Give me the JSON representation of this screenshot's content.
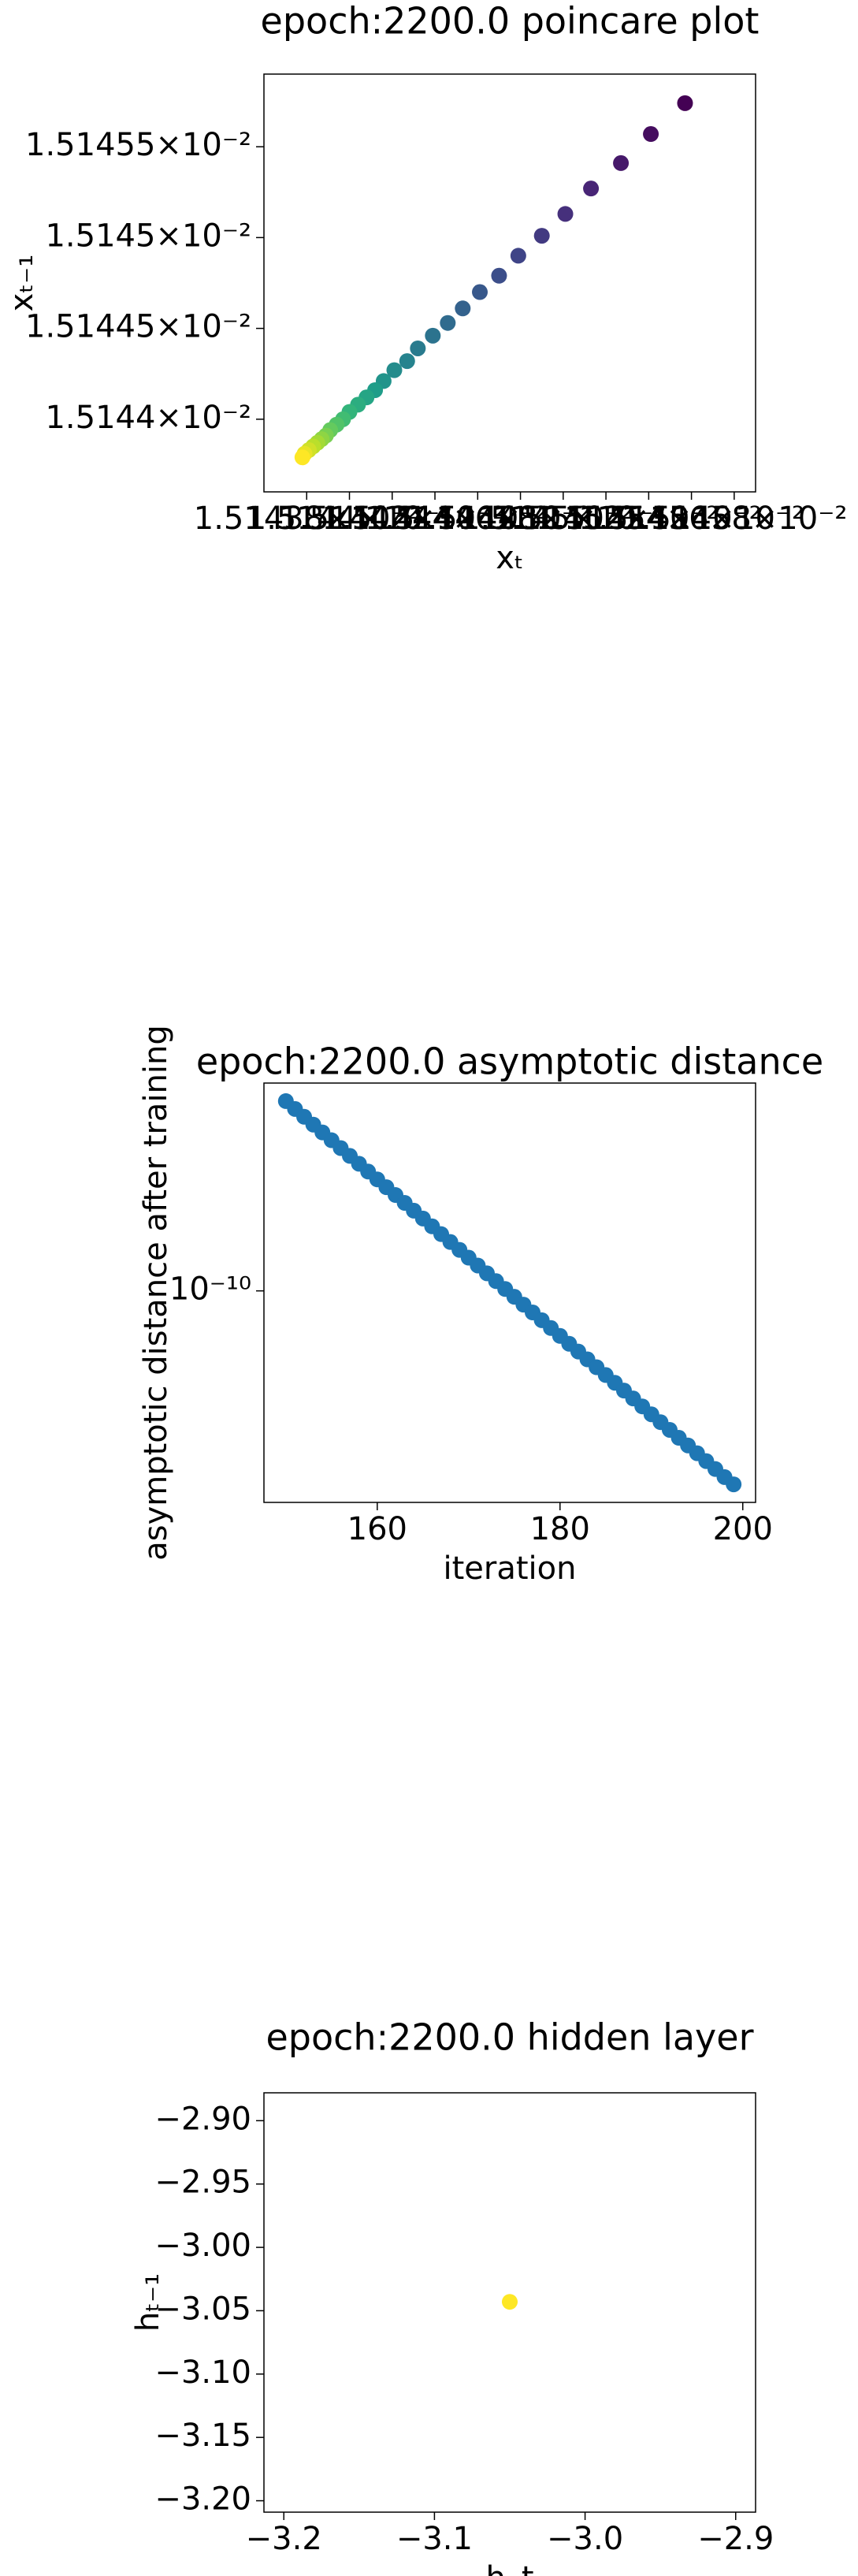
{
  "chart_data": [
    {
      "type": "scatter",
      "title": "epoch:2200.0 poincare plot",
      "xlabel": "xₜ",
      "ylabel": "xₜ₋₁",
      "colormap": "viridis",
      "x": [
        0.01514557,
        0.01514541,
        0.01514527,
        0.01514513,
        0.01514501,
        0.0151449,
        0.01514479,
        0.0151447,
        0.01514461,
        0.01514453,
        0.01514446,
        0.01514439,
        0.01514432,
        0.01514427,
        0.01514421,
        0.01514416,
        0.01514412,
        0.01514408,
        0.01514404,
        0.015144,
        0.01514397,
        0.01514394,
        0.01514391,
        0.01514389,
        0.01514387,
        0.01514385,
        0.01514383,
        0.01514381,
        0.01514379,
        0.01514378
      ],
      "y": [
        0.01514574,
        0.01514557,
        0.01514541,
        0.01514527,
        0.01514513,
        0.01514501,
        0.0151449,
        0.01514479,
        0.0151447,
        0.01514461,
        0.01514453,
        0.01514446,
        0.01514439,
        0.01514432,
        0.01514427,
        0.01514421,
        0.01514416,
        0.01514412,
        0.01514408,
        0.01514404,
        0.015144,
        0.01514397,
        0.01514394,
        0.01514391,
        0.01514389,
        0.01514387,
        0.01514385,
        0.01514383,
        0.01514381,
        0.01514379
      ],
      "xlim": [
        0.0151436,
        0.0151459
      ],
      "ylim": [
        0.0151436,
        0.0151459
      ],
      "xticks": [
        {
          "value": 0.0151438,
          "label": "1.51438×10⁻²"
        },
        {
          "value": 0.015144,
          "label": "1.5144×10⁻²"
        },
        {
          "value": 0.0151442,
          "label": "1.51442×10⁻²"
        },
        {
          "value": 0.0151444,
          "label": "1.51444×10⁻²"
        },
        {
          "value": 0.0151446,
          "label": "1.51446×10⁻²"
        },
        {
          "value": 0.0151448,
          "label": "1.51448×10⁻²"
        },
        {
          "value": 0.015145,
          "label": "1.5145×10⁻²"
        },
        {
          "value": 0.0151452,
          "label": "1.51452×10⁻²"
        },
        {
          "value": 0.0151454,
          "label": "1.51454×10⁻²"
        },
        {
          "value": 0.0151456,
          "label": "1.51456×10⁻²"
        },
        {
          "value": 0.0151458,
          "label": "1.51458×10⁻²"
        }
      ],
      "yticks": [
        {
          "value": 0.015144,
          "label": "1.5144×10⁻²"
        },
        {
          "value": 0.0151445,
          "label": "1.51445×10⁻²"
        },
        {
          "value": 0.015145,
          "label": "1.5145×10⁻²"
        },
        {
          "value": 0.0151455,
          "label": "1.51455×10⁻²"
        }
      ]
    },
    {
      "type": "scatter",
      "title": "epoch:2200.0 asymptotic distance",
      "xlabel": "iteration",
      "ylabel": "asymptotic distance after training",
      "color": "#1f77b4",
      "yscale": "log",
      "x": [
        150,
        151,
        152,
        153,
        154,
        155,
        156,
        157,
        158,
        159,
        160,
        161,
        162,
        163,
        164,
        165,
        166,
        167,
        168,
        169,
        170,
        171,
        172,
        173,
        174,
        175,
        176,
        177,
        178,
        179,
        180,
        181,
        182,
        183,
        184,
        185,
        186,
        187,
        188,
        189,
        190,
        191,
        192,
        193,
        194,
        195,
        196,
        197,
        198,
        199
      ],
      "y": [
        6.6e-10,
        6.106e-10,
        5.649e-10,
        5.226e-10,
        4.835e-10,
        4.473e-10,
        4.138e-10,
        3.828e-10,
        3.541e-10,
        3.276e-10,
        3.031e-10,
        2.804e-10,
        2.594e-10,
        2.4e-10,
        2.22e-10,
        2.054e-10,
        1.9e-10,
        1.758e-10,
        1.626e-10,
        1.504e-10,
        1.391e-10,
        1.287e-10,
        1.191e-10,
        1.102e-10,
        1.019e-10,
        9.43e-11,
        8.72e-11,
        8.07e-11,
        7.47e-11,
        6.91e-11,
        6.39e-11,
        5.91e-11,
        5.47e-11,
        5.06e-11,
        4.68e-11,
        4.33e-11,
        4.01e-11,
        3.71e-11,
        3.43e-11,
        3.17e-11,
        2.93e-11,
        2.71e-11,
        2.51e-11,
        2.32e-11,
        2.15e-11,
        1.99e-11,
        1.84e-11,
        1.7e-11,
        1.57e-11,
        1.46e-11
      ],
      "xlim": [
        147.6,
        201.4
      ],
      "ylim": [
        1.22e-11,
        7.9e-10
      ],
      "xticks": [
        160,
        180,
        200
      ],
      "yticks": [
        {
          "value": 1e-10,
          "label": "10⁻¹⁰"
        }
      ]
    },
    {
      "type": "scatter",
      "title": "epoch:2200.0 hidden layer",
      "xlabel": "h_t",
      "ylabel": "hₜ₋₁",
      "color": "#fde725",
      "x": [
        -3.05
      ],
      "y": [
        -3.043
      ],
      "xlim": [
        -3.2132,
        -2.8868
      ],
      "ylim": [
        -3.209,
        -2.878
      ],
      "xticks": [
        {
          "value": -3.2,
          "label": "−3.2"
        },
        {
          "value": -3.1,
          "label": "−3.1"
        },
        {
          "value": -3.0,
          "label": "−3.0"
        },
        {
          "value": -2.9,
          "label": "−2.9"
        }
      ],
      "yticks": [
        {
          "value": -3.2,
          "label": "−3.20"
        },
        {
          "value": -3.15,
          "label": "−3.15"
        },
        {
          "value": -3.1,
          "label": "−3.10"
        },
        {
          "value": -3.05,
          "label": "−3.05"
        },
        {
          "value": -3.0,
          "label": "−3.00"
        },
        {
          "value": -2.95,
          "label": "−2.95"
        },
        {
          "value": -2.9,
          "label": "−2.90"
        }
      ]
    }
  ]
}
